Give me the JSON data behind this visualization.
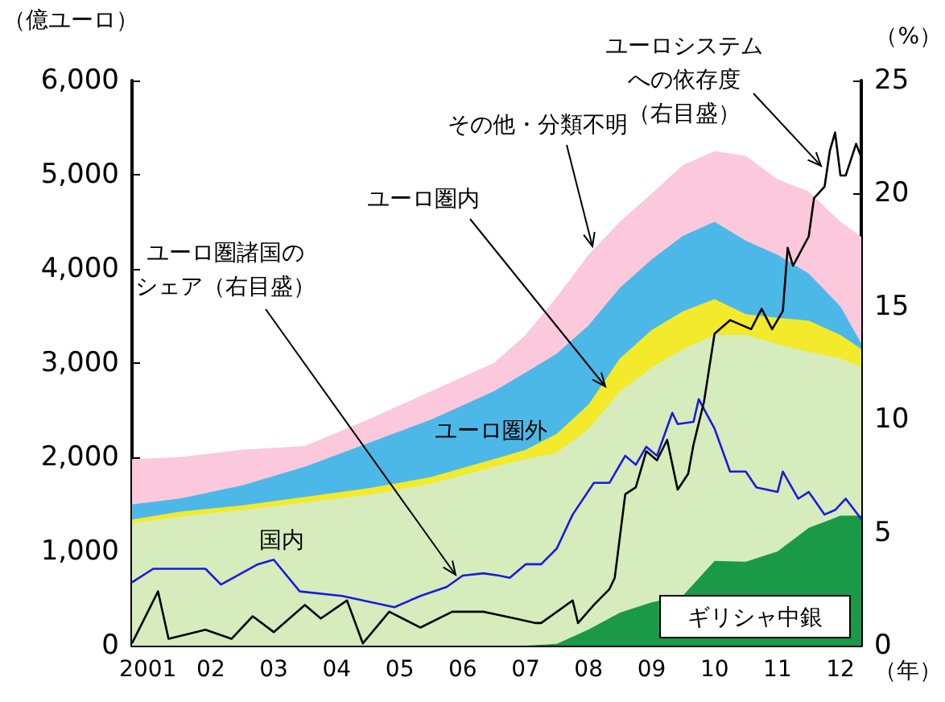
{
  "chart_data": {
    "type": "area",
    "stacked": true,
    "legend": false,
    "grid": false,
    "marker": "none",
    "line_style": "solid",
    "xlabel": "（年）",
    "ylabel": "（億ユーロ）",
    "y2label": "（%）",
    "x": [
      "2000-10",
      "2001-07",
      "2002-07",
      "2003-07",
      "2004-07",
      "2005-07",
      "2006-07",
      "2007-01",
      "2007-07",
      "2008-01",
      "2008-07",
      "2009-01",
      "2009-07",
      "2010-01",
      "2010-07",
      "2011-01",
      "2011-07",
      "2012-01",
      "2012-05"
    ],
    "xlim": [
      "2000-10",
      "2012-05"
    ],
    "xticks": [
      {
        "value": "2001",
        "label": "2001"
      },
      {
        "value": "2002",
        "label": "02"
      },
      {
        "value": "2003",
        "label": "03"
      },
      {
        "value": "2004",
        "label": "04"
      },
      {
        "value": "2005",
        "label": "05"
      },
      {
        "value": "2006",
        "label": "06"
      },
      {
        "value": "2007",
        "label": "07"
      },
      {
        "value": "2008",
        "label": "08"
      },
      {
        "value": "2009",
        "label": "09"
      },
      {
        "value": "2010",
        "label": "10"
      },
      {
        "value": "2011",
        "label": "11"
      },
      {
        "value": "2012",
        "label": "12"
      }
    ],
    "ylim": [
      0,
      6000
    ],
    "yticks": [
      0,
      {
        "value": 1000,
        "label": "1,000"
      },
      {
        "value": 2000,
        "label": "2,000"
      },
      {
        "value": 3000,
        "label": "3,000"
      },
      {
        "value": 4000,
        "label": "4,000"
      },
      {
        "value": 5000,
        "label": "5,000"
      },
      {
        "value": 6000,
        "label": "6,000"
      }
    ],
    "y2lim": [
      0,
      25
    ],
    "y2ticks": [
      0,
      5,
      10,
      15,
      20,
      25
    ],
    "series": [
      {
        "name": "ギリシャ中銀",
        "color": "#1a9a48",
        "values": [
          0,
          0,
          0,
          0,
          0,
          0,
          0,
          0,
          20,
          170,
          350,
          460,
          530,
          900,
          890,
          1000,
          1250,
          1380,
          1380
        ]
      },
      {
        "name": "国内",
        "color": "#d6ecbc",
        "values": [
          1300,
          1370,
          1440,
          1520,
          1600,
          1720,
          1900,
          1980,
          2030,
          2130,
          2350,
          2490,
          2620,
          2400,
          2410,
          2200,
          1870,
          1670,
          1580
        ]
      },
      {
        "name": "ユーロ圏内",
        "color": "#f2ea2a",
        "values": [
          40,
          50,
          50,
          60,
          70,
          70,
          80,
          100,
          200,
          260,
          350,
          400,
          400,
          380,
          220,
          280,
          330,
          250,
          190
        ]
      },
      {
        "name": "ユーロ圏外",
        "color": "#4cb8e8",
        "values": [
          160,
          140,
          210,
          320,
          480,
          610,
          720,
          820,
          850,
          840,
          750,
          750,
          800,
          820,
          780,
          670,
          500,
          300,
          60
        ]
      },
      {
        "name": "その他・分類不明",
        "color": "#fbc8dc",
        "values": [
          480,
          440,
          380,
          220,
          250,
          300,
          300,
          400,
          600,
          750,
          700,
          700,
          750,
          750,
          900,
          800,
          870,
          900,
          1130
        ]
      },
      {
        "name": "ユーロ圏諸国のシェア（右目盛）",
        "type": "line",
        "axis": "y2",
        "color": "#1a1ae0",
        "x": [
          "2000-10",
          "2001-02",
          "2001-12",
          "2002-03",
          "2002-10",
          "2003-01",
          "2003-06",
          "2004-02",
          "2004-12",
          "2005-05",
          "2005-10",
          "2006-01",
          "2006-05",
          "2006-08",
          "2006-10",
          "2007-01",
          "2007-04",
          "2007-07",
          "2007-10",
          "2008-02",
          "2008-05",
          "2008-08",
          "2008-10",
          "2008-12",
          "2009-02",
          "2009-05",
          "2009-06",
          "2009-09",
          "2009-10",
          "2010-01",
          "2010-04",
          "2010-07",
          "2010-09",
          "2011-01",
          "2011-02",
          "2011-05",
          "2011-07",
          "2011-10",
          "2011-12",
          "2012-02",
          "2012-05"
        ],
        "values": [
          2.8,
          3.4,
          3.4,
          2.7,
          3.6,
          3.8,
          2.4,
          2.2,
          1.7,
          2.2,
          2.6,
          3.1,
          3.2,
          3.1,
          3.0,
          3.6,
          3.6,
          4.3,
          5.8,
          7.2,
          7.2,
          8.4,
          8.0,
          8.8,
          8.4,
          10.3,
          9.8,
          9.9,
          10.9,
          9.6,
          7.7,
          7.7,
          7.0,
          6.8,
          7.7,
          6.5,
          6.8,
          5.8,
          6.0,
          6.5,
          5.6
        ]
      },
      {
        "name": "ユーロシステムへの依存度（右目盛）",
        "type": "line",
        "axis": "y2",
        "color": "#000000",
        "x": [
          "2000-10",
          "2001-01",
          "2001-03",
          "2001-05",
          "2001-12",
          "2002-05",
          "2002-09",
          "2003-01",
          "2003-07",
          "2003-10",
          "2004-03",
          "2004-06",
          "2004-11",
          "2005-05",
          "2005-11",
          "2006-05",
          "2006-11",
          "2007-03",
          "2007-04",
          "2007-10",
          "2007-11",
          "2008-02",
          "2008-05",
          "2008-06",
          "2008-08",
          "2008-10",
          "2008-12",
          "2009-02",
          "2009-04",
          "2009-06",
          "2009-08",
          "2009-09",
          "2009-11",
          "2010-01",
          "2010-04",
          "2010-08",
          "2010-10",
          "2010-12",
          "2011-02",
          "2011-03",
          "2011-04",
          "2011-07",
          "2011-08",
          "2011-10",
          "2011-11",
          "2011-12",
          "2012-01",
          "2012-02",
          "2012-04",
          "2012-05"
        ],
        "values": [
          0.1,
          1.5,
          2.4,
          0.3,
          0.7,
          0.3,
          1.3,
          0.6,
          1.8,
          1.2,
          2.0,
          0.1,
          1.5,
          0.8,
          1.5,
          1.5,
          1.2,
          1.0,
          1.0,
          2.0,
          1.0,
          1.8,
          2.5,
          3.0,
          6.7,
          7.0,
          8.6,
          8.2,
          9.1,
          6.9,
          7.6,
          8.9,
          10.8,
          13.8,
          14.4,
          14.0,
          14.9,
          14.0,
          14.8,
          17.6,
          16.8,
          18.1,
          19.8,
          20.3,
          21.9,
          22.7,
          20.8,
          20.8,
          22.2,
          21.6
        ]
      }
    ]
  }
}
